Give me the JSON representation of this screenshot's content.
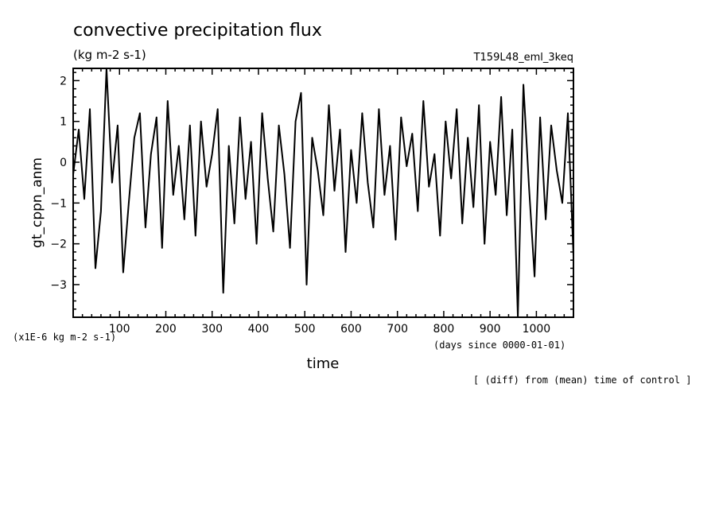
{
  "chart_data": {
    "type": "line",
    "title": "convective precipitation flux",
    "subtitle": "(kg m-2 s-1)",
    "run_label": "T159L48_eml_3keq",
    "ylabel": "gt_cppn_anm",
    "xlabel": "time",
    "x_units": "(days since 0000-01-01)",
    "y_units": "(x1E-6 kg m-2 s-1)",
    "note": "[ (diff) from (mean) time of control ]",
    "xlim": [
      0,
      1080
    ],
    "ylim": [
      -3.8,
      2.3
    ],
    "x_ticks": [
      "100",
      "200",
      "300",
      "400",
      "500",
      "600",
      "700",
      "800",
      "900",
      "1000"
    ],
    "y_ticks": [
      "2",
      "1",
      "0",
      "-1",
      "-2",
      "-3"
    ],
    "grid": false,
    "legend": "none",
    "series": [
      {
        "color": "#000000",
        "x": [
          0,
          12,
          24,
          36,
          48,
          60,
          72,
          84,
          96,
          108,
          120,
          132,
          144,
          156,
          168,
          180,
          192,
          204,
          216,
          228,
          240,
          252,
          264,
          276,
          288,
          300,
          312,
          324,
          336,
          348,
          360,
          372,
          384,
          396,
          408,
          420,
          432,
          444,
          456,
          468,
          480,
          492,
          504,
          516,
          528,
          540,
          552,
          564,
          576,
          588,
          600,
          612,
          624,
          636,
          648,
          660,
          672,
          684,
          696,
          708,
          720,
          732,
          744,
          756,
          768,
          780,
          792,
          804,
          816,
          828,
          840,
          852,
          864,
          876,
          888,
          900,
          912,
          924,
          936,
          948,
          960,
          972,
          984,
          996,
          1008,
          1020,
          1032,
          1044,
          1056,
          1068,
          1080
        ],
        "y": [
          -0.3,
          0.8,
          -0.9,
          1.3,
          -2.6,
          -1.2,
          2.3,
          -0.5,
          0.9,
          -2.7,
          -1.0,
          0.6,
          1.2,
          -1.6,
          0.2,
          1.1,
          -2.1,
          1.5,
          -0.8,
          0.4,
          -1.4,
          0.9,
          -1.8,
          1.0,
          -0.6,
          0.2,
          1.3,
          -3.2,
          0.4,
          -1.5,
          1.1,
          -0.9,
          0.5,
          -2.0,
          1.2,
          -0.4,
          -1.7,
          0.9,
          -0.3,
          -2.1,
          1.0,
          1.7,
          -3.0,
          0.6,
          -0.2,
          -1.3,
          1.4,
          -0.7,
          0.8,
          -2.2,
          0.3,
          -1.0,
          1.2,
          -0.5,
          -1.6,
          1.3,
          -0.8,
          0.4,
          -1.9,
          1.1,
          -0.1,
          0.7,
          -1.2,
          1.5,
          -0.6,
          0.2,
          -1.8,
          1.0,
          -0.4,
          1.3,
          -1.5,
          0.6,
          -1.1,
          1.4,
          -2.0,
          0.5,
          -0.8,
          1.6,
          -1.3,
          0.8,
          -3.8,
          1.9,
          -0.6,
          -2.8,
          1.1,
          -1.4,
          0.9,
          -0.2,
          -1.0,
          1.2,
          -2.3
        ]
      }
    ]
  }
}
